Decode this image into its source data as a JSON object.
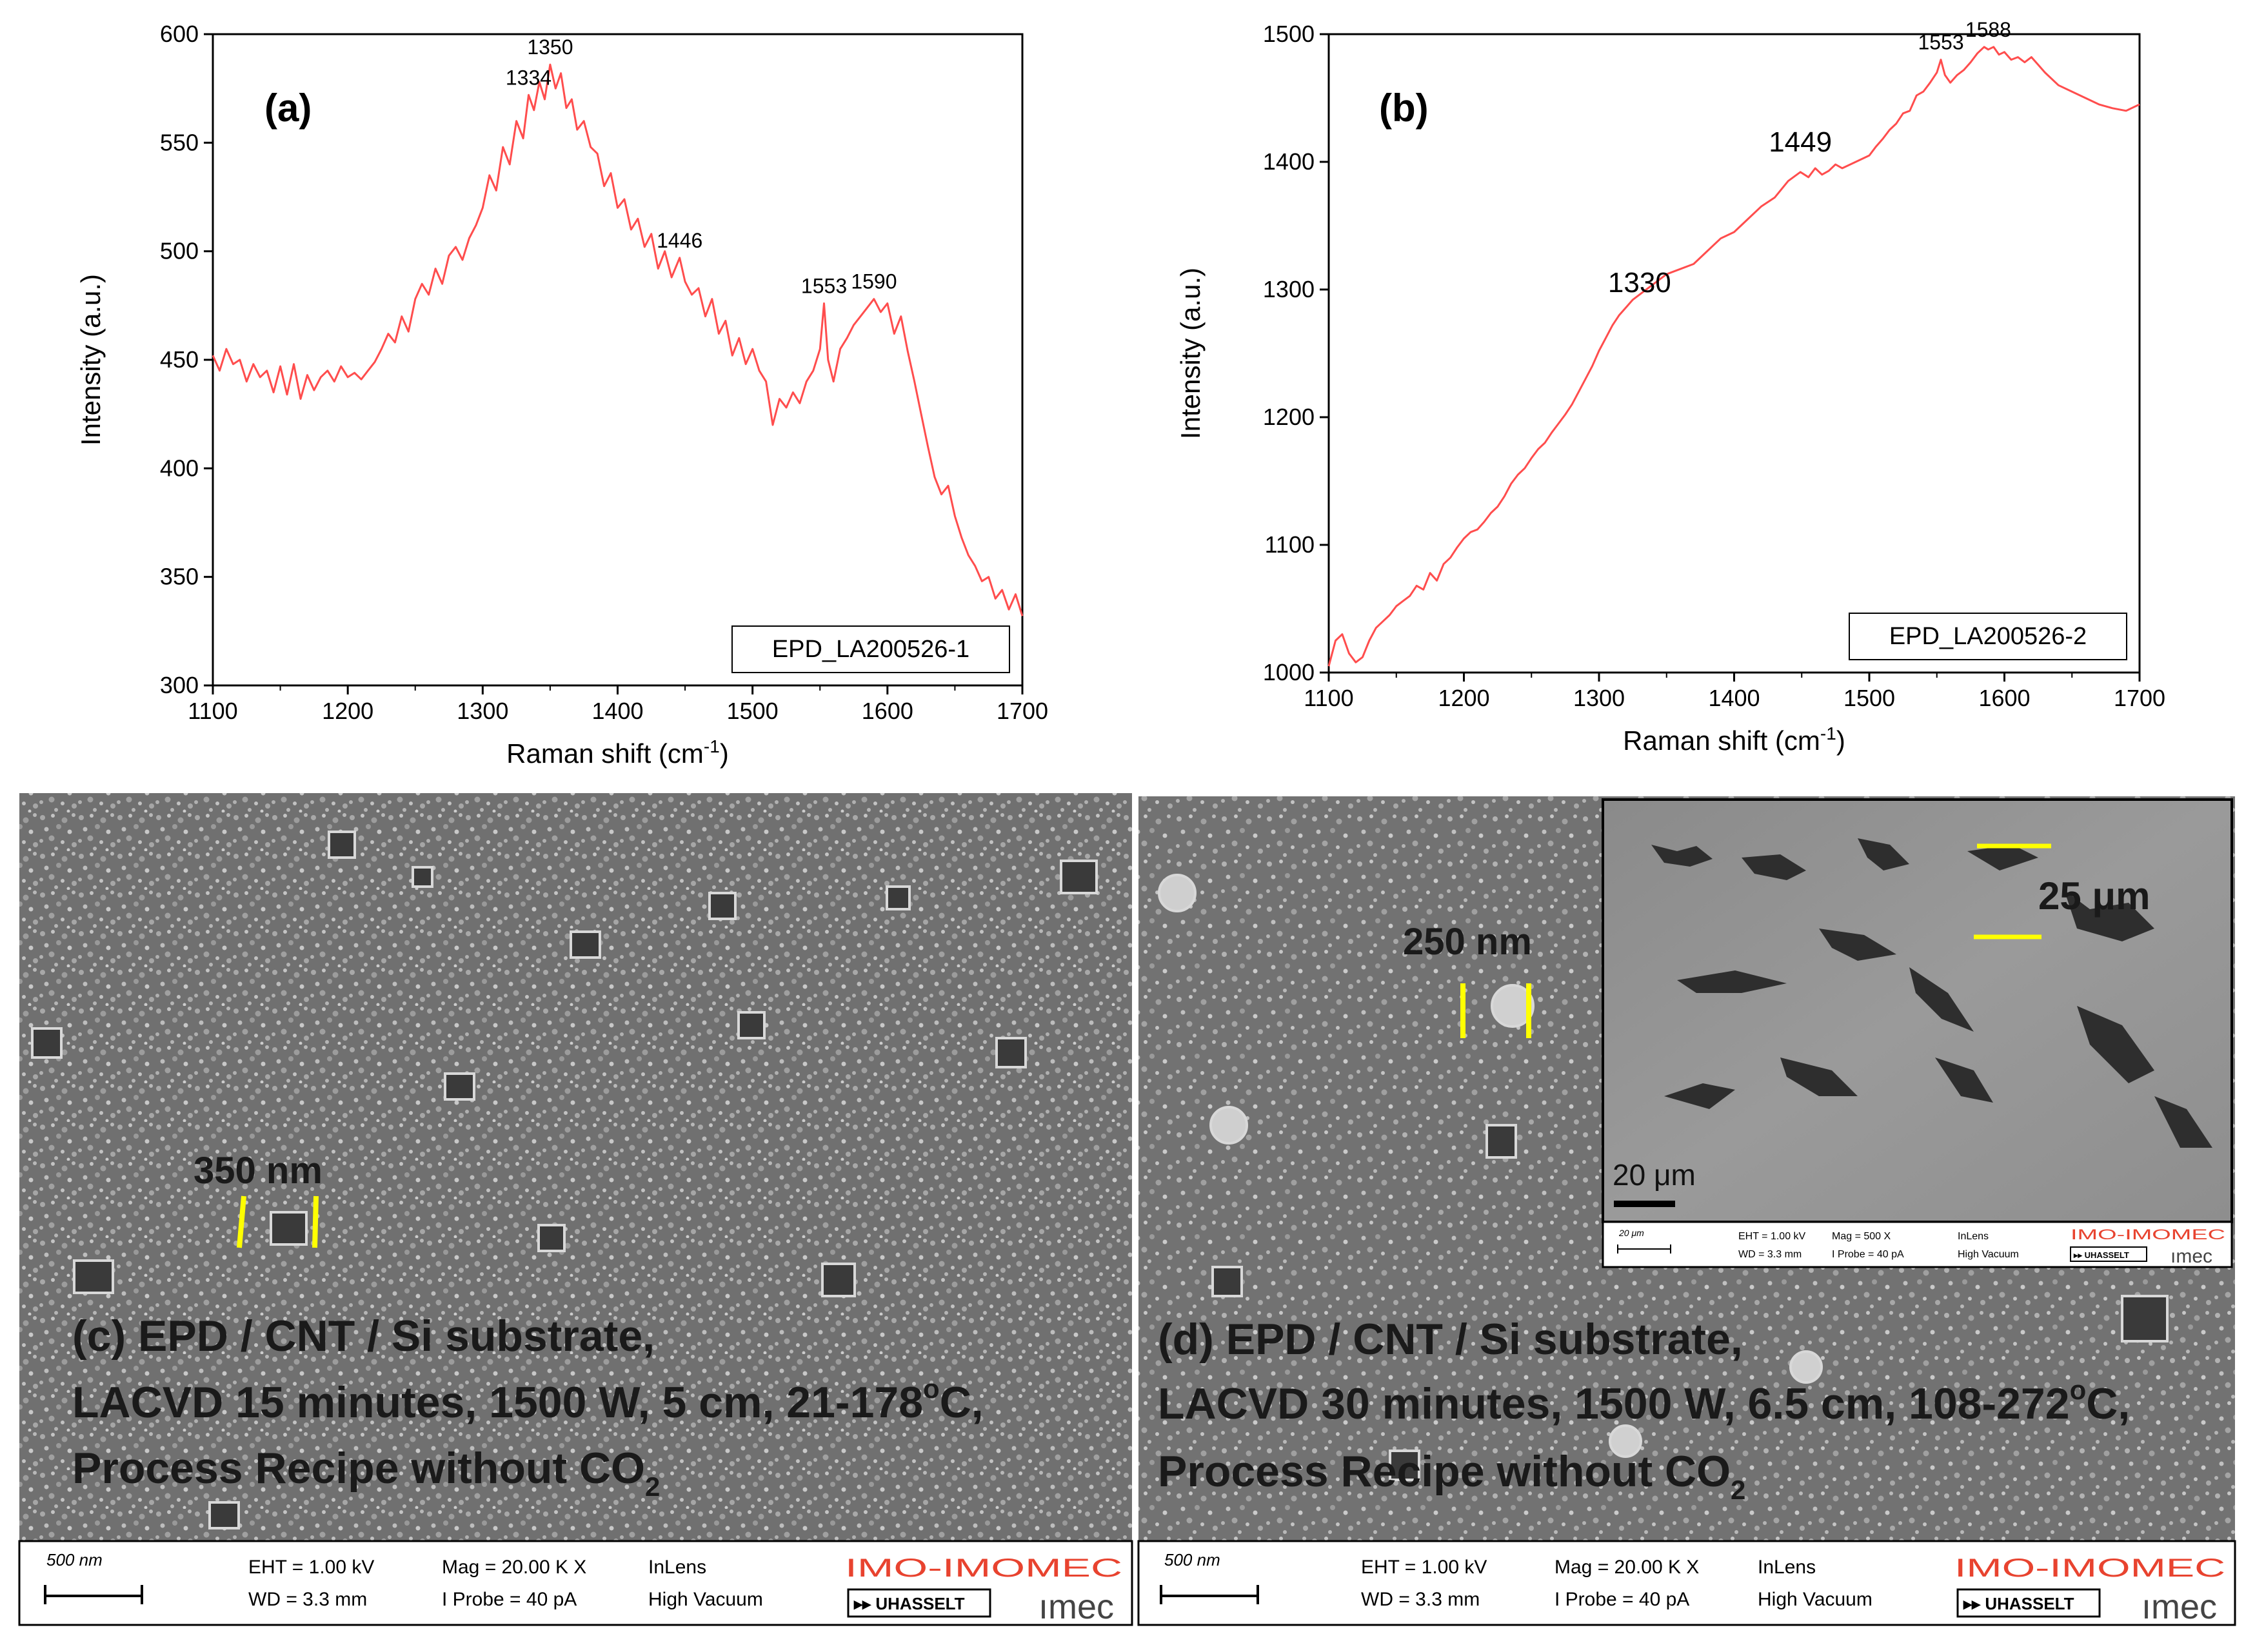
{
  "chart_data": [
    {
      "type": "line",
      "panel_label": "(a)",
      "legend": "EPD_LA200526-1",
      "xlabel": "Raman shift (cm",
      "xlabel_sup": "-1",
      "xlabel_end": ")",
      "ylabel": "Intensity (a.u.)",
      "xlim": [
        1100,
        1700
      ],
      "ylim": [
        300,
        600
      ],
      "xticks": [
        "1100",
        "1200",
        "1300",
        "1400",
        "1500",
        "1600",
        "1700"
      ],
      "yticks": [
        "300",
        "350",
        "400",
        "450",
        "500",
        "550",
        "600"
      ],
      "annotations": [
        {
          "label": "1334",
          "x": 1334,
          "y": 572
        },
        {
          "label": "1350",
          "x": 1350,
          "y": 586
        },
        {
          "label": "1446",
          "x": 1446,
          "y": 497
        },
        {
          "label": "1553",
          "x": 1553,
          "y": 476
        },
        {
          "label": "1590",
          "x": 1590,
          "y": 478
        }
      ],
      "series": [
        {
          "color": "#ff4d4d",
          "x": [
            1100,
            1105,
            1110,
            1115,
            1120,
            1125,
            1130,
            1135,
            1140,
            1145,
            1150,
            1155,
            1160,
            1165,
            1170,
            1175,
            1180,
            1185,
            1190,
            1195,
            1200,
            1205,
            1210,
            1215,
            1220,
            1225,
            1230,
            1235,
            1240,
            1245,
            1250,
            1255,
            1260,
            1265,
            1270,
            1275,
            1280,
            1285,
            1290,
            1295,
            1300,
            1305,
            1310,
            1315,
            1320,
            1325,
            1330,
            1334,
            1338,
            1342,
            1346,
            1350,
            1354,
            1358,
            1362,
            1366,
            1370,
            1375,
            1380,
            1385,
            1390,
            1395,
            1400,
            1405,
            1410,
            1415,
            1420,
            1425,
            1430,
            1435,
            1440,
            1446,
            1450,
            1455,
            1460,
            1465,
            1470,
            1475,
            1480,
            1485,
            1490,
            1495,
            1500,
            1505,
            1510,
            1515,
            1520,
            1525,
            1530,
            1535,
            1540,
            1545,
            1550,
            1553,
            1556,
            1560,
            1565,
            1570,
            1575,
            1580,
            1585,
            1590,
            1595,
            1600,
            1605,
            1610,
            1615,
            1620,
            1625,
            1630,
            1635,
            1640,
            1645,
            1650,
            1655,
            1660,
            1665,
            1670,
            1675,
            1680,
            1685,
            1690,
            1695,
            1700
          ],
          "y": [
            452,
            445,
            455,
            448,
            450,
            440,
            448,
            442,
            445,
            435,
            447,
            434,
            448,
            432,
            443,
            436,
            442,
            445,
            440,
            447,
            442,
            444,
            441,
            445,
            449,
            455,
            462,
            458,
            470,
            463,
            478,
            485,
            480,
            492,
            485,
            498,
            502,
            496,
            506,
            512,
            520,
            535,
            528,
            548,
            540,
            560,
            552,
            572,
            565,
            578,
            570,
            586,
            575,
            582,
            566,
            570,
            556,
            560,
            548,
            545,
            530,
            536,
            520,
            524,
            510,
            515,
            502,
            508,
            492,
            500,
            488,
            497,
            486,
            480,
            483,
            470,
            478,
            462,
            468,
            452,
            460,
            448,
            455,
            445,
            440,
            420,
            432,
            428,
            435,
            430,
            440,
            445,
            455,
            476,
            450,
            440,
            455,
            460,
            466,
            470,
            474,
            478,
            472,
            476,
            462,
            470,
            454,
            440,
            425,
            410,
            396,
            388,
            392,
            378,
            368,
            360,
            355,
            348,
            350,
            340,
            344,
            335,
            342,
            332
          ]
        }
      ]
    },
    {
      "type": "line",
      "panel_label": "(b)",
      "legend": "EPD_LA200526-2",
      "xlabel": "Raman shift (cm",
      "xlabel_sup": "-1",
      "xlabel_end": ")",
      "ylabel": "Intensity (a.u.)",
      "xlim": [
        1100,
        1700
      ],
      "ylim": [
        1000,
        1500
      ],
      "xticks": [
        "1100",
        "1200",
        "1300",
        "1400",
        "1500",
        "1600",
        "1700"
      ],
      "yticks": [
        "1000",
        "1100",
        "1200",
        "1300",
        "1400",
        "1500"
      ],
      "annotations": [
        {
          "label": "1330",
          "x": 1330,
          "y": 1290
        },
        {
          "label": "1449",
          "x": 1449,
          "y": 1400
        },
        {
          "label": "1553",
          "x": 1553,
          "y": 1480
        },
        {
          "label": "1588",
          "x": 1588,
          "y": 1490
        }
      ],
      "series": [
        {
          "color": "#ff4d4d",
          "x": [
            1100,
            1105,
            1110,
            1115,
            1120,
            1125,
            1130,
            1135,
            1140,
            1145,
            1150,
            1155,
            1160,
            1165,
            1170,
            1175,
            1180,
            1185,
            1190,
            1195,
            1200,
            1205,
            1210,
            1215,
            1220,
            1225,
            1230,
            1235,
            1240,
            1245,
            1250,
            1255,
            1260,
            1265,
            1270,
            1275,
            1280,
            1285,
            1290,
            1295,
            1300,
            1305,
            1310,
            1315,
            1320,
            1325,
            1330,
            1340,
            1350,
            1360,
            1370,
            1380,
            1390,
            1400,
            1410,
            1420,
            1430,
            1440,
            1449,
            1455,
            1460,
            1465,
            1470,
            1475,
            1480,
            1490,
            1500,
            1505,
            1510,
            1515,
            1520,
            1525,
            1530,
            1535,
            1540,
            1545,
            1550,
            1553,
            1556,
            1560,
            1565,
            1570,
            1575,
            1580,
            1585,
            1588,
            1592,
            1596,
            1600,
            1605,
            1610,
            1615,
            1620,
            1625,
            1630,
            1640,
            1650,
            1660,
            1670,
            1680,
            1690,
            1700
          ],
          "y": [
            1005,
            1025,
            1030,
            1015,
            1008,
            1012,
            1025,
            1035,
            1040,
            1045,
            1052,
            1056,
            1060,
            1068,
            1065,
            1078,
            1072,
            1085,
            1090,
            1098,
            1105,
            1110,
            1112,
            1118,
            1125,
            1130,
            1138,
            1148,
            1155,
            1160,
            1168,
            1175,
            1180,
            1188,
            1195,
            1202,
            1210,
            1220,
            1230,
            1240,
            1252,
            1262,
            1272,
            1280,
            1286,
            1292,
            1296,
            1304,
            1312,
            1316,
            1320,
            1330,
            1340,
            1345,
            1355,
            1365,
            1372,
            1385,
            1392,
            1388,
            1395,
            1390,
            1393,
            1398,
            1395,
            1400,
            1405,
            1412,
            1418,
            1425,
            1430,
            1438,
            1440,
            1452,
            1455,
            1462,
            1470,
            1480,
            1468,
            1462,
            1468,
            1472,
            1478,
            1485,
            1490,
            1488,
            1490,
            1484,
            1486,
            1480,
            1482,
            1478,
            1482,
            1476,
            1470,
            1460,
            1455,
            1450,
            1445,
            1442,
            1440,
            1445
          ]
        }
      ]
    }
  ],
  "sem_images": [
    {
      "caption_line1": "(c) EPD / CNT / Si substrate,",
      "caption_line2": "LACVD 15 minutes, 1500 W, 5 cm, 21-178",
      "caption_line2_sup": "o",
      "caption_line2_end": "C,",
      "caption_line3": "Process Recipe without CO",
      "caption_line3_sub": "2",
      "measure_label": "350 nm",
      "scale_text": "500 nm",
      "eht": "EHT =  1.00 kV",
      "wd": "WD =  3.3 mm",
      "mag": "Mag =   20.00 K X",
      "probe": "I Probe =       40 pA",
      "detector": "InLens",
      "vacuum": "High Vacuum",
      "logo_imo": "IMO-IMOMEC",
      "logo_uhasselt": "▸▸ UHASSELT",
      "logo_imec": "ımec"
    },
    {
      "caption_line1": "(d) EPD / CNT / Si substrate,",
      "caption_line2": "LACVD 30 minutes, 1500 W, 6.5 cm, 108-272",
      "caption_line2_sup": "o",
      "caption_line2_end": "C,",
      "caption_line3": "Process Recipe without CO",
      "caption_line3_sub": "2",
      "measure_label": "250 nm",
      "scale_text": "500 nm",
      "eht": "EHT =  1.00 kV",
      "wd": "WD =  3.3 mm",
      "mag": "Mag =   20.00 K X",
      "probe": "I Probe =       40 pA",
      "detector": "InLens",
      "vacuum": "High Vacuum",
      "logo_imo": "IMO-IMOMEC",
      "logo_uhasselt": "▸▸ UHASSELT",
      "logo_imec": "ımec",
      "inset": {
        "measure_label": "25 μm",
        "scale_label": "20 μm",
        "scale_text": "20 μm",
        "eht": "EHT =  1.00 kV",
        "wd": "WD =  3.3 mm",
        "mag": "Mag =    500 X",
        "probe": "I Probe =       40 pA",
        "detector": "InLens",
        "vacuum": "High Vacuum",
        "logo_imo": "IMO-IMOMEC",
        "logo_uhasselt": "▸▸ UHASSELT",
        "logo_imec": "ımec"
      }
    }
  ],
  "colors": {
    "line": "#ff4d4d",
    "annotation_yellow": "#ffff00",
    "logo_red": "#e8432f",
    "sem_gray": "#6e6e6e"
  }
}
